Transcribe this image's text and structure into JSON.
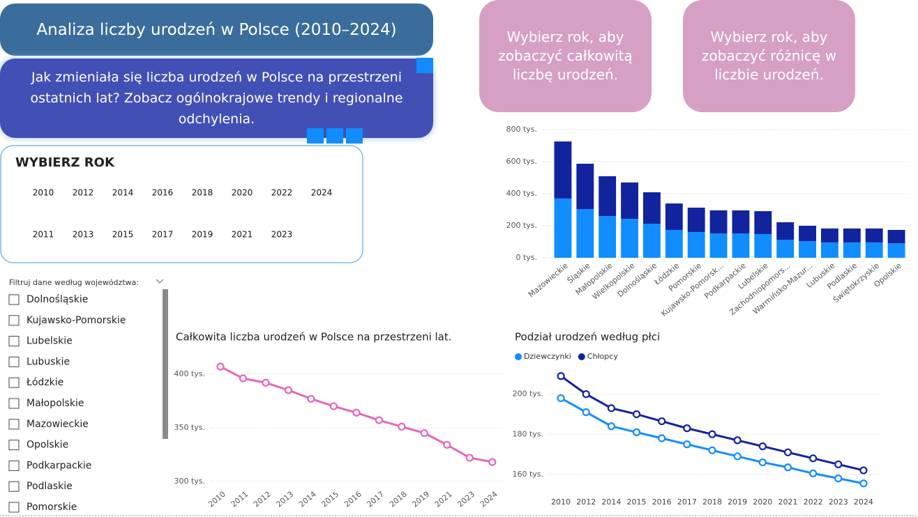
{
  "header": {
    "title": "Analiza liczby urodzeń w Polsce (2010–2024)",
    "subtitle": "Jak zmieniała się liczba urodzeń w Polsce na przestrzeni ostatnich lat? Zobacz ogólnokrajowe trendy i regionalne odchylenia."
  },
  "buttons": [
    "Wybierz rok, aby zobaczyć całkowitą liczbę urodzeń.",
    "Wybierz rok, aby zobaczyć różnicę w liczbie urodzeń."
  ],
  "slicer": {
    "title": "WYBIERZ ROK",
    "rows": [
      [
        "2010",
        "2012",
        "2014",
        "2016",
        "2018",
        "2020",
        "2022",
        "2024"
      ],
      [
        "2011",
        "2013",
        "2015",
        "2017",
        "2019",
        "2021",
        "2023"
      ]
    ]
  },
  "filter": {
    "label": "Filtruj dane według województwa:",
    "items": [
      "Dolnośląskie",
      "Kujawsko-Pomorskie",
      "Lubelskie",
      "Lubuskie",
      "Łódzkie",
      "Małopolskie",
      "Mazowieckie",
      "Opolskie",
      "Podkarpackie",
      "Podlaskie",
      "Pomorskie"
    ]
  },
  "chart_data": [
    {
      "type": "bar",
      "stacked": true,
      "grid": true,
      "categories": [
        "Mazowieckie",
        "Śląskie",
        "Małopolskie",
        "Wielkopolskie",
        "Dolnośląskie",
        "Łódzkie",
        "Pomorskie",
        "Kujawsko-Pomorsk...",
        "Podkarpackie",
        "Lubelskie",
        "Zachodniopomors...",
        "Warmińsko-Mazur...",
        "Lubuskie",
        "Podlaskie",
        "Świętokrzyskie",
        "Opolskie"
      ],
      "series": [
        {
          "color": "#118dff",
          "values": [
            370,
            304,
            261,
            243,
            213,
            174,
            161,
            152,
            152,
            148,
            113,
            104,
            96,
            96,
            96,
            91
          ]
        },
        {
          "color": "#12239e",
          "values": [
            356,
            283,
            248,
            227,
            196,
            165,
            152,
            144,
            144,
            143,
            109,
            96,
            87,
            87,
            87,
            83
          ]
        }
      ],
      "ylim": [
        0,
        800
      ],
      "yticks": [
        {
          "value": 0,
          "label": "0 tys."
        },
        {
          "value": 200,
          "label": "200 tys."
        },
        {
          "value": 400,
          "label": "400 tys."
        },
        {
          "value": 600,
          "label": "600 tys."
        },
        {
          "value": 800,
          "label": "800 tys."
        }
      ]
    },
    {
      "type": "line",
      "grid": true,
      "title": "Całkowita liczba urodzeń w Polsce na przestrzeni lat.",
      "categories": [
        "2010",
        "2011",
        "2012",
        "2013",
        "2014",
        "2015",
        "2016",
        "2017",
        "2018",
        "2019",
        "2021",
        "2023",
        "2024"
      ],
      "series": [
        {
          "color": "#e566b8",
          "values": [
            407,
            396,
            392,
            385,
            377,
            370,
            364,
            357,
            351,
            345,
            334,
            322,
            318
          ]
        }
      ],
      "ylim": [
        294,
        411
      ],
      "yticks": [
        {
          "value": 300,
          "label": "300 tys."
        },
        {
          "value": 350,
          "label": "350 tys."
        },
        {
          "value": 400,
          "label": "400 tys."
        }
      ]
    },
    {
      "type": "line",
      "grid": true,
      "title": "Podział urodzeń według płci",
      "legend": "top-left",
      "categories": [
        "2010",
        "2012",
        "2014",
        "2015",
        "2016",
        "2017",
        "2018",
        "2019",
        "2020",
        "2021",
        "2022",
        "2023",
        "2024"
      ],
      "series": [
        {
          "name": "Dziewczynki",
          "color": "#118dff",
          "values": [
            198,
            191,
            184,
            181,
            178,
            175,
            172,
            169,
            166,
            163.5,
            160.5,
            158,
            155.5
          ]
        },
        {
          "name": "Chłopcy",
          "color": "#12239e",
          "values": [
            209,
            200,
            193,
            190,
            186.5,
            183,
            180,
            177,
            174,
            171,
            168,
            165,
            162
          ]
        }
      ],
      "ylim": [
        153,
        211
      ],
      "yticks": [
        {
          "value": 160,
          "label": "160 tys."
        },
        {
          "value": 180,
          "label": "180 tys."
        },
        {
          "value": 200,
          "label": "200 tys."
        }
      ]
    }
  ]
}
